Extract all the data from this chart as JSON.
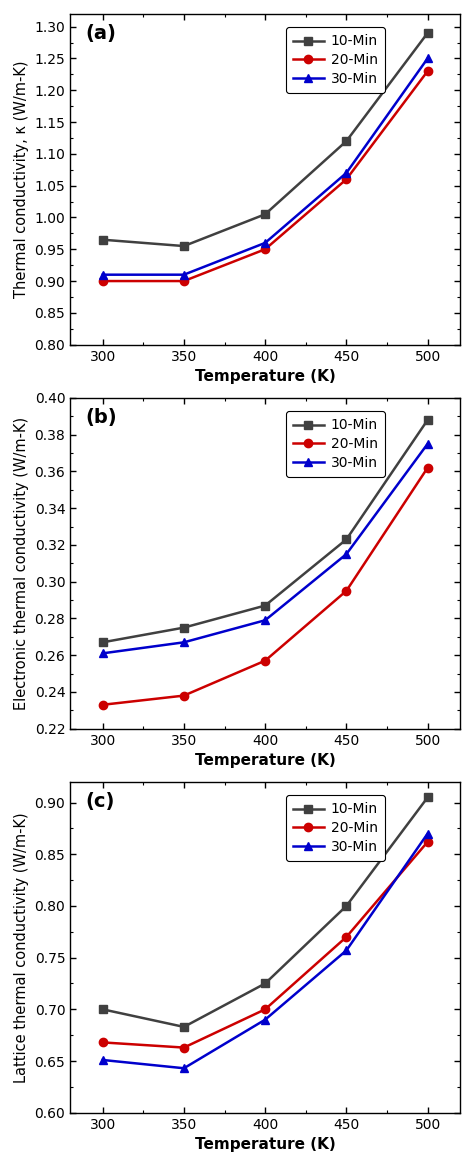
{
  "temperature": [
    300,
    350,
    400,
    450,
    500
  ],
  "panel_a": {
    "label": "(a)",
    "ylabel": "Thermal conductivity, κ (W/m-K)",
    "ylim": [
      0.8,
      1.32
    ],
    "yticks": [
      0.8,
      0.85,
      0.9,
      0.95,
      1.0,
      1.05,
      1.1,
      1.15,
      1.2,
      1.25,
      1.3
    ],
    "series": {
      "10-Min": {
        "color": "#404040",
        "marker": "s",
        "data": [
          0.965,
          0.955,
          1.005,
          1.12,
          1.29
        ]
      },
      "20-Min": {
        "color": "#cc0000",
        "marker": "o",
        "data": [
          0.9,
          0.9,
          0.95,
          1.06,
          1.23
        ]
      },
      "30-Min": {
        "color": "#0000cc",
        "marker": "^",
        "data": [
          0.91,
          0.91,
          0.96,
          1.07,
          1.25
        ]
      }
    }
  },
  "panel_b": {
    "label": "(b)",
    "ylabel": "Electronic thermal conductivity (W/m-K)",
    "ylim": [
      0.22,
      0.4
    ],
    "yticks": [
      0.22,
      0.24,
      0.26,
      0.28,
      0.3,
      0.32,
      0.34,
      0.36,
      0.38,
      0.4
    ],
    "series": {
      "10-Min": {
        "color": "#404040",
        "marker": "s",
        "data": [
          0.267,
          0.275,
          0.287,
          0.323,
          0.388
        ]
      },
      "20-Min": {
        "color": "#cc0000",
        "marker": "o",
        "data": [
          0.233,
          0.238,
          0.257,
          0.295,
          0.362
        ]
      },
      "30-Min": {
        "color": "#0000cc",
        "marker": "^",
        "data": [
          0.261,
          0.267,
          0.279,
          0.315,
          0.375
        ]
      }
    }
  },
  "panel_c": {
    "label": "(c)",
    "ylabel": "Lattice thermal conductivity (W/m-K)",
    "ylim": [
      0.6,
      0.92
    ],
    "yticks": [
      0.6,
      0.65,
      0.7,
      0.75,
      0.8,
      0.85,
      0.9
    ],
    "series": {
      "10-Min": {
        "color": "#404040",
        "marker": "s",
        "data": [
          0.7,
          0.683,
          0.725,
          0.8,
          0.905
        ]
      },
      "20-Min": {
        "color": "#cc0000",
        "marker": "o",
        "data": [
          0.668,
          0.663,
          0.7,
          0.77,
          0.862
        ]
      },
      "30-Min": {
        "color": "#0000cc",
        "marker": "^",
        "data": [
          0.651,
          0.643,
          0.69,
          0.757,
          0.87
        ]
      }
    }
  },
  "xlabel": "Temperature (K)",
  "xticks": [
    300,
    350,
    400,
    450,
    500
  ],
  "line_width": 1.8,
  "marker_size": 6,
  "font_size_label": 11,
  "font_size_tick": 10,
  "font_size_legend": 10,
  "font_size_panel_label": 14
}
